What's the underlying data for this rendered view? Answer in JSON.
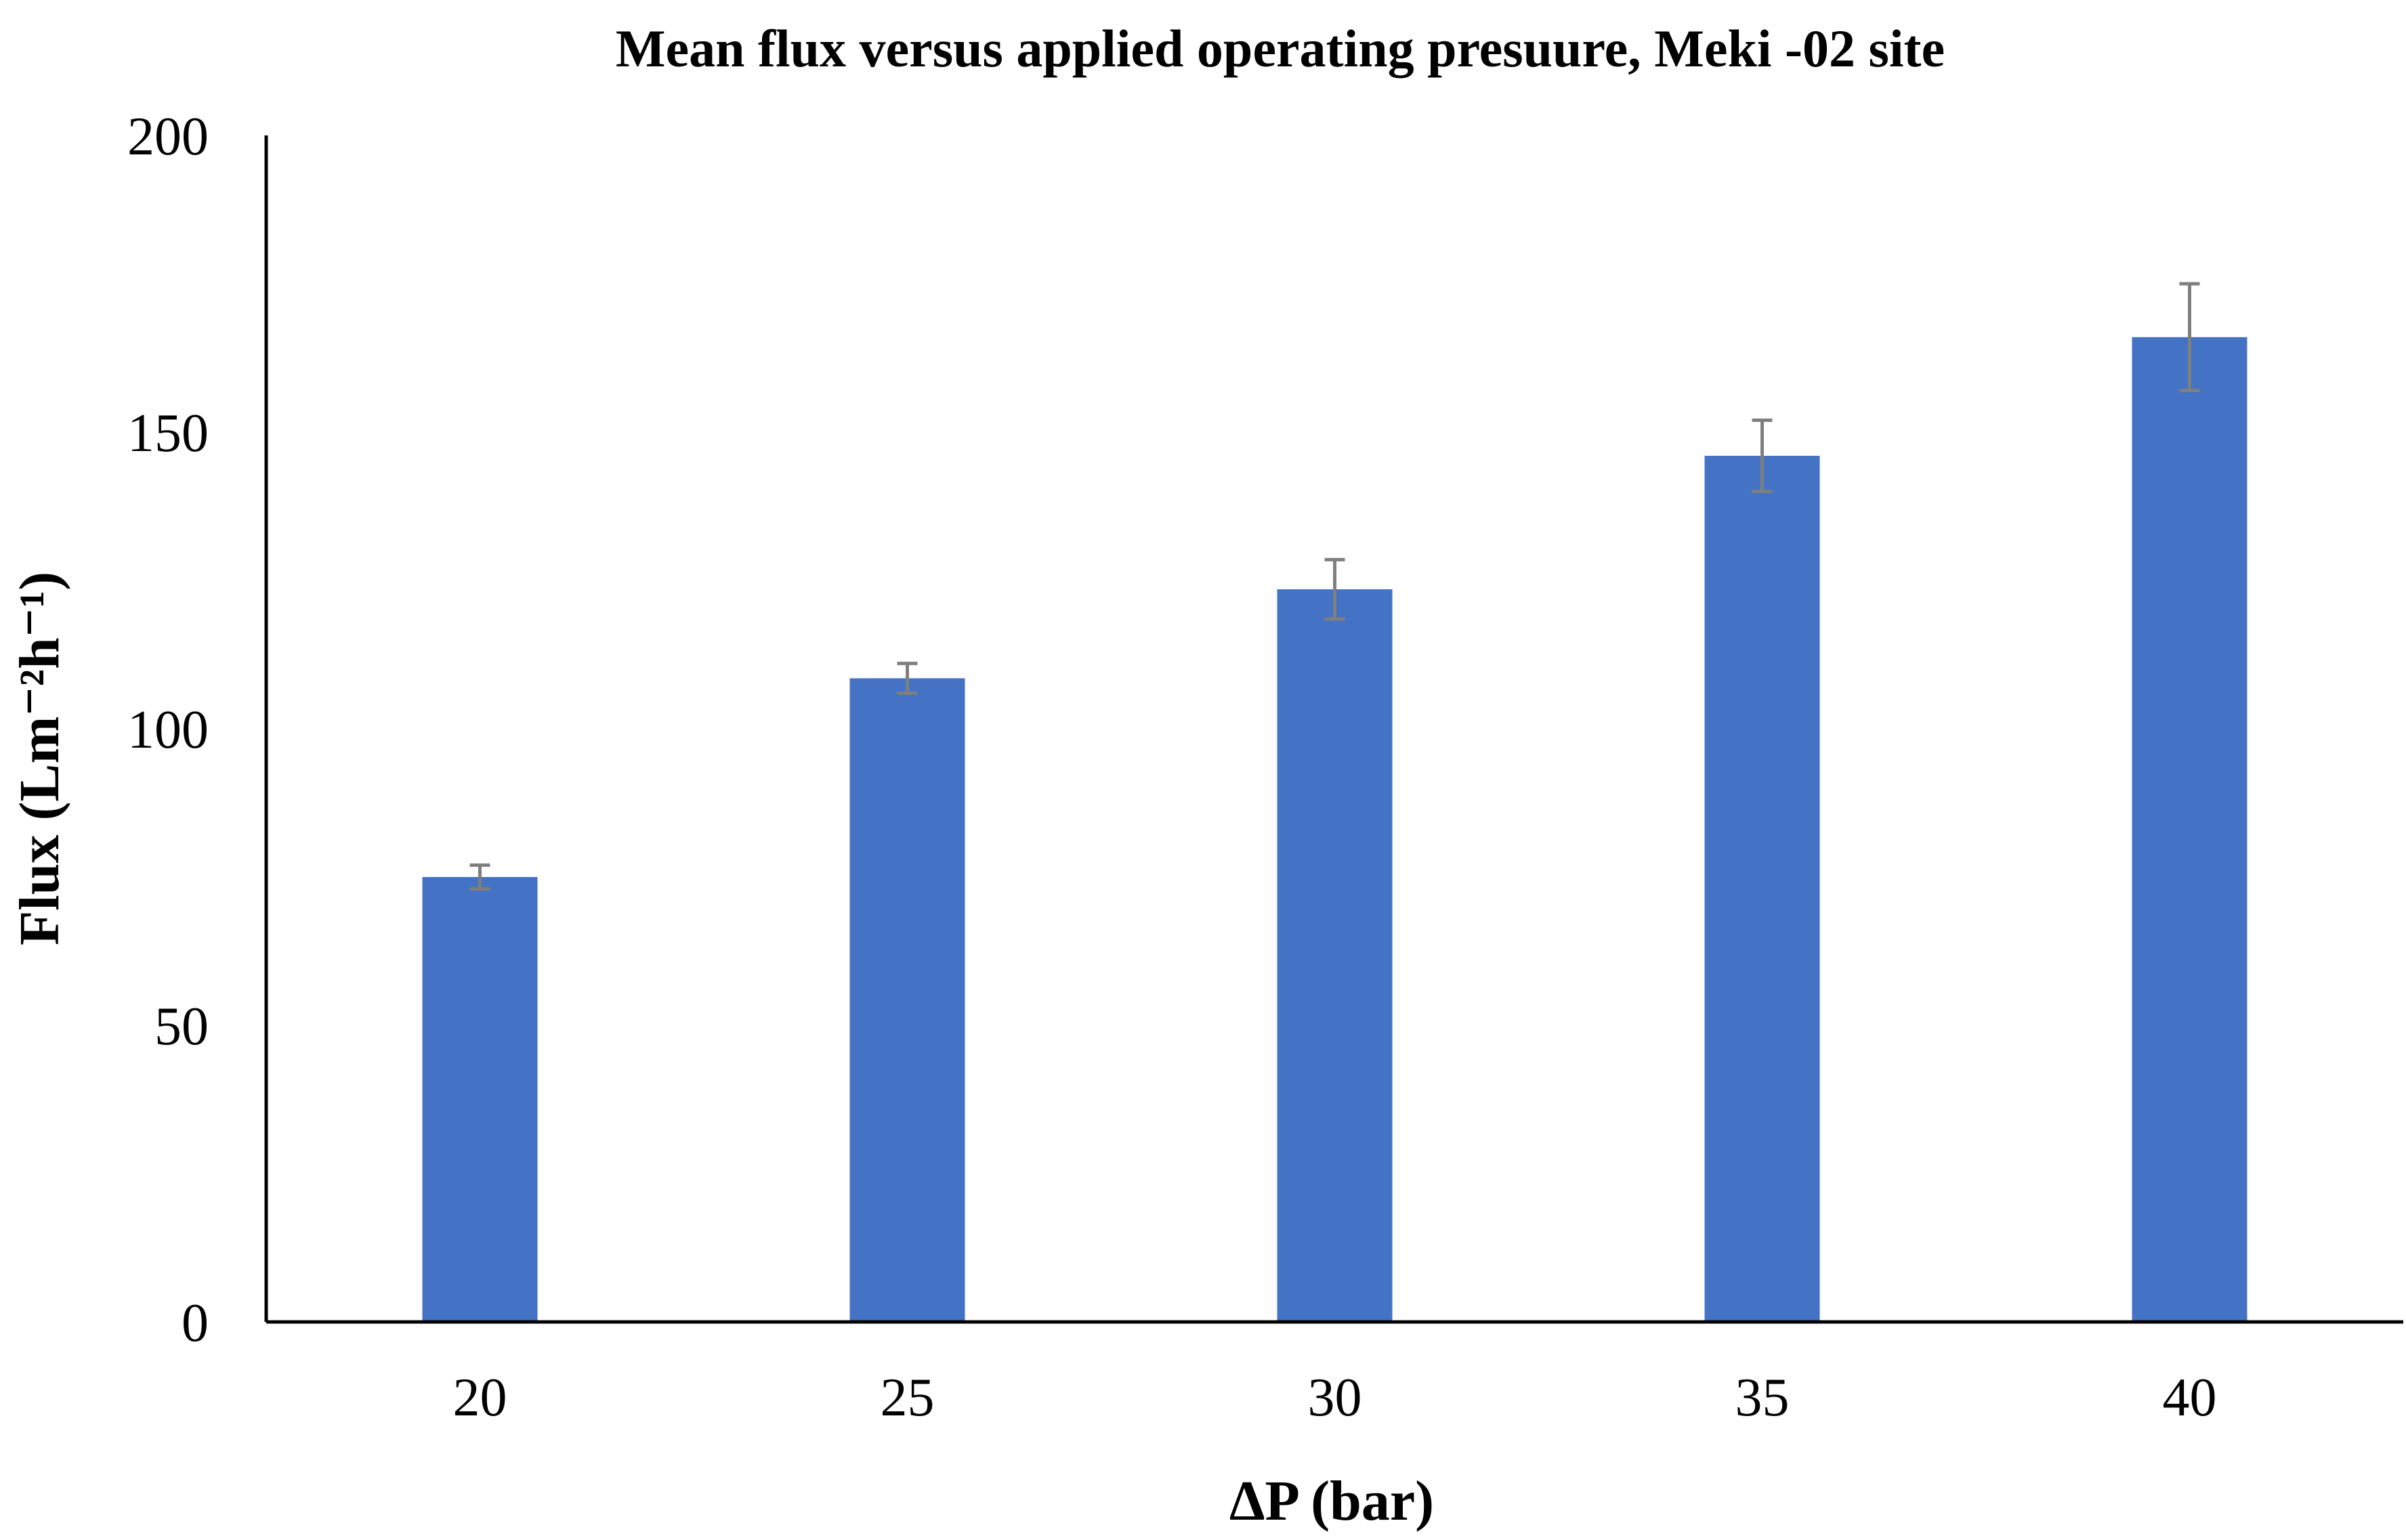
{
  "chart_data": {
    "type": "bar",
    "title": "Mean flux versus applied operating presuure, Meki -02 site",
    "xlabel": "ΔP (bar)",
    "ylabel": "Flux (Lm⁻²h⁻¹)",
    "categories": [
      "20",
      "25",
      "30",
      "35",
      "40"
    ],
    "values": [
      75,
      108.5,
      123.5,
      146,
      166
    ],
    "errors": [
      2,
      2.5,
      5,
      6,
      9
    ],
    "ylim": [
      0,
      200
    ],
    "yticks": [
      "0",
      "50",
      "100",
      "150",
      "200"
    ],
    "grid": false,
    "legend": "none",
    "colors": {
      "bar": "#4472c4",
      "error_bar": "#7f7f7f",
      "axis": "#000000"
    }
  }
}
